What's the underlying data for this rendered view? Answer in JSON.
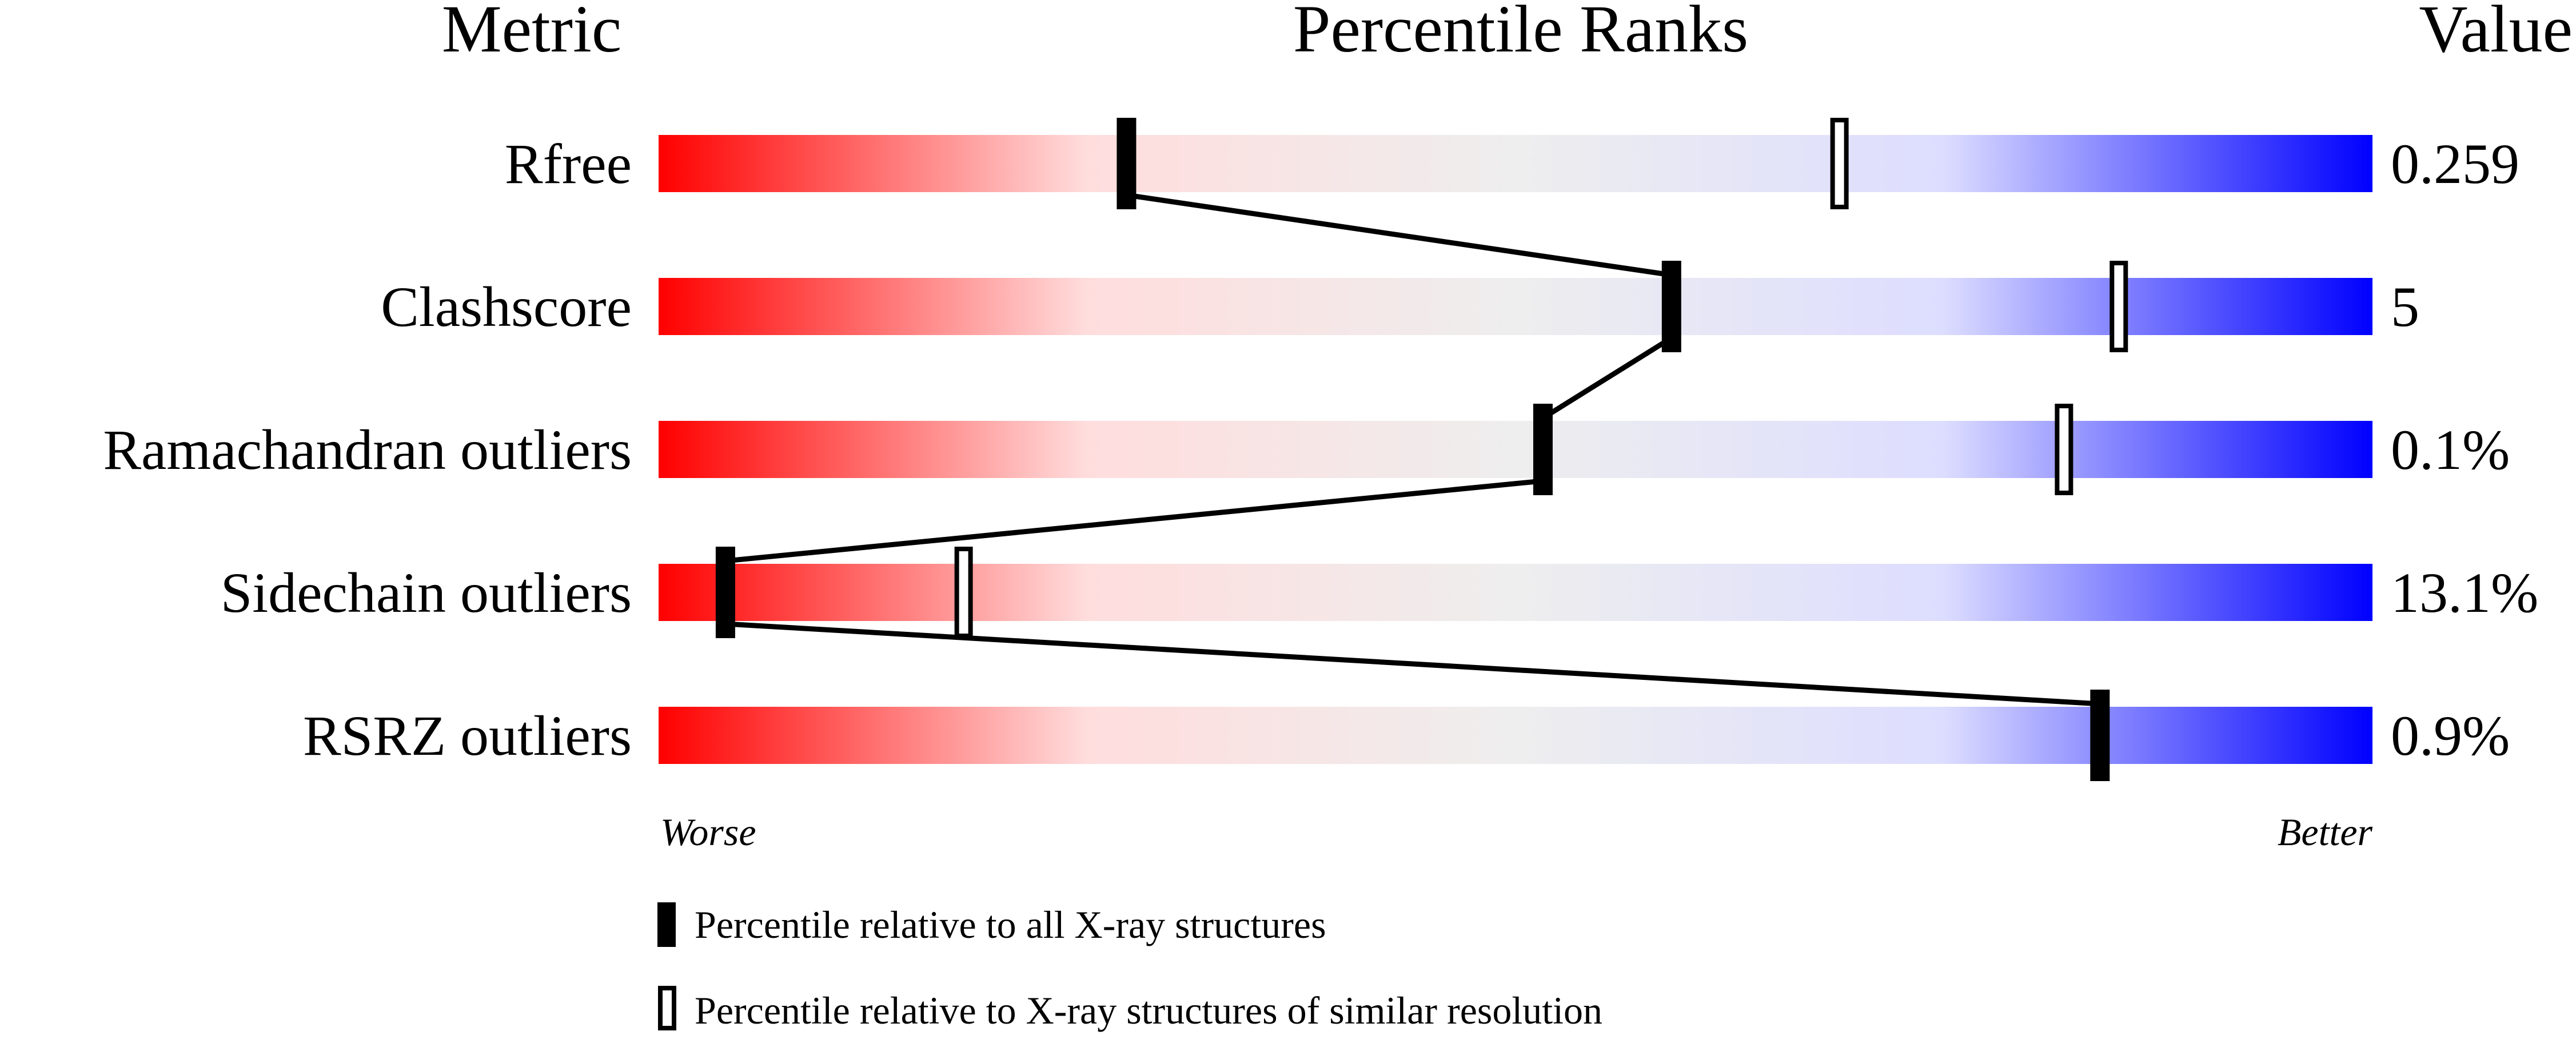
{
  "chart_data": {
    "type": "percentile-slider",
    "headers": {
      "metric": "Metric",
      "ranks": "Percentile Ranks",
      "value": "Value"
    },
    "xlim": [
      0,
      100
    ],
    "scale_labels": {
      "left": "Worse",
      "right": "Better"
    },
    "gradient_colors": [
      "#ff0000",
      "#ffdddd",
      "#eeeeee",
      "#ddddff",
      "#0000ff"
    ],
    "metrics": [
      {
        "name": "Rfree",
        "value": "0.259",
        "percentile_all": 27.3,
        "percentile_similar": 68.9
      },
      {
        "name": "Clashscore",
        "value": "5",
        "percentile_all": 59.1,
        "percentile_similar": 85.2
      },
      {
        "name": "Ramachandran outliers",
        "value": "0.1%",
        "percentile_all": 51.6,
        "percentile_similar": 82.0
      },
      {
        "name": "Sidechain outliers",
        "value": "13.1%",
        "percentile_all": 3.9,
        "percentile_similar": 17.8
      },
      {
        "name": "RSRZ outliers",
        "value": "0.9%",
        "percentile_all": 84.1,
        "percentile_similar": null
      }
    ],
    "legend": [
      {
        "marker": "filled",
        "label": "Percentile relative to all X-ray structures"
      },
      {
        "marker": "open",
        "label": "Percentile relative to X-ray structures of similar resolution"
      }
    ]
  }
}
